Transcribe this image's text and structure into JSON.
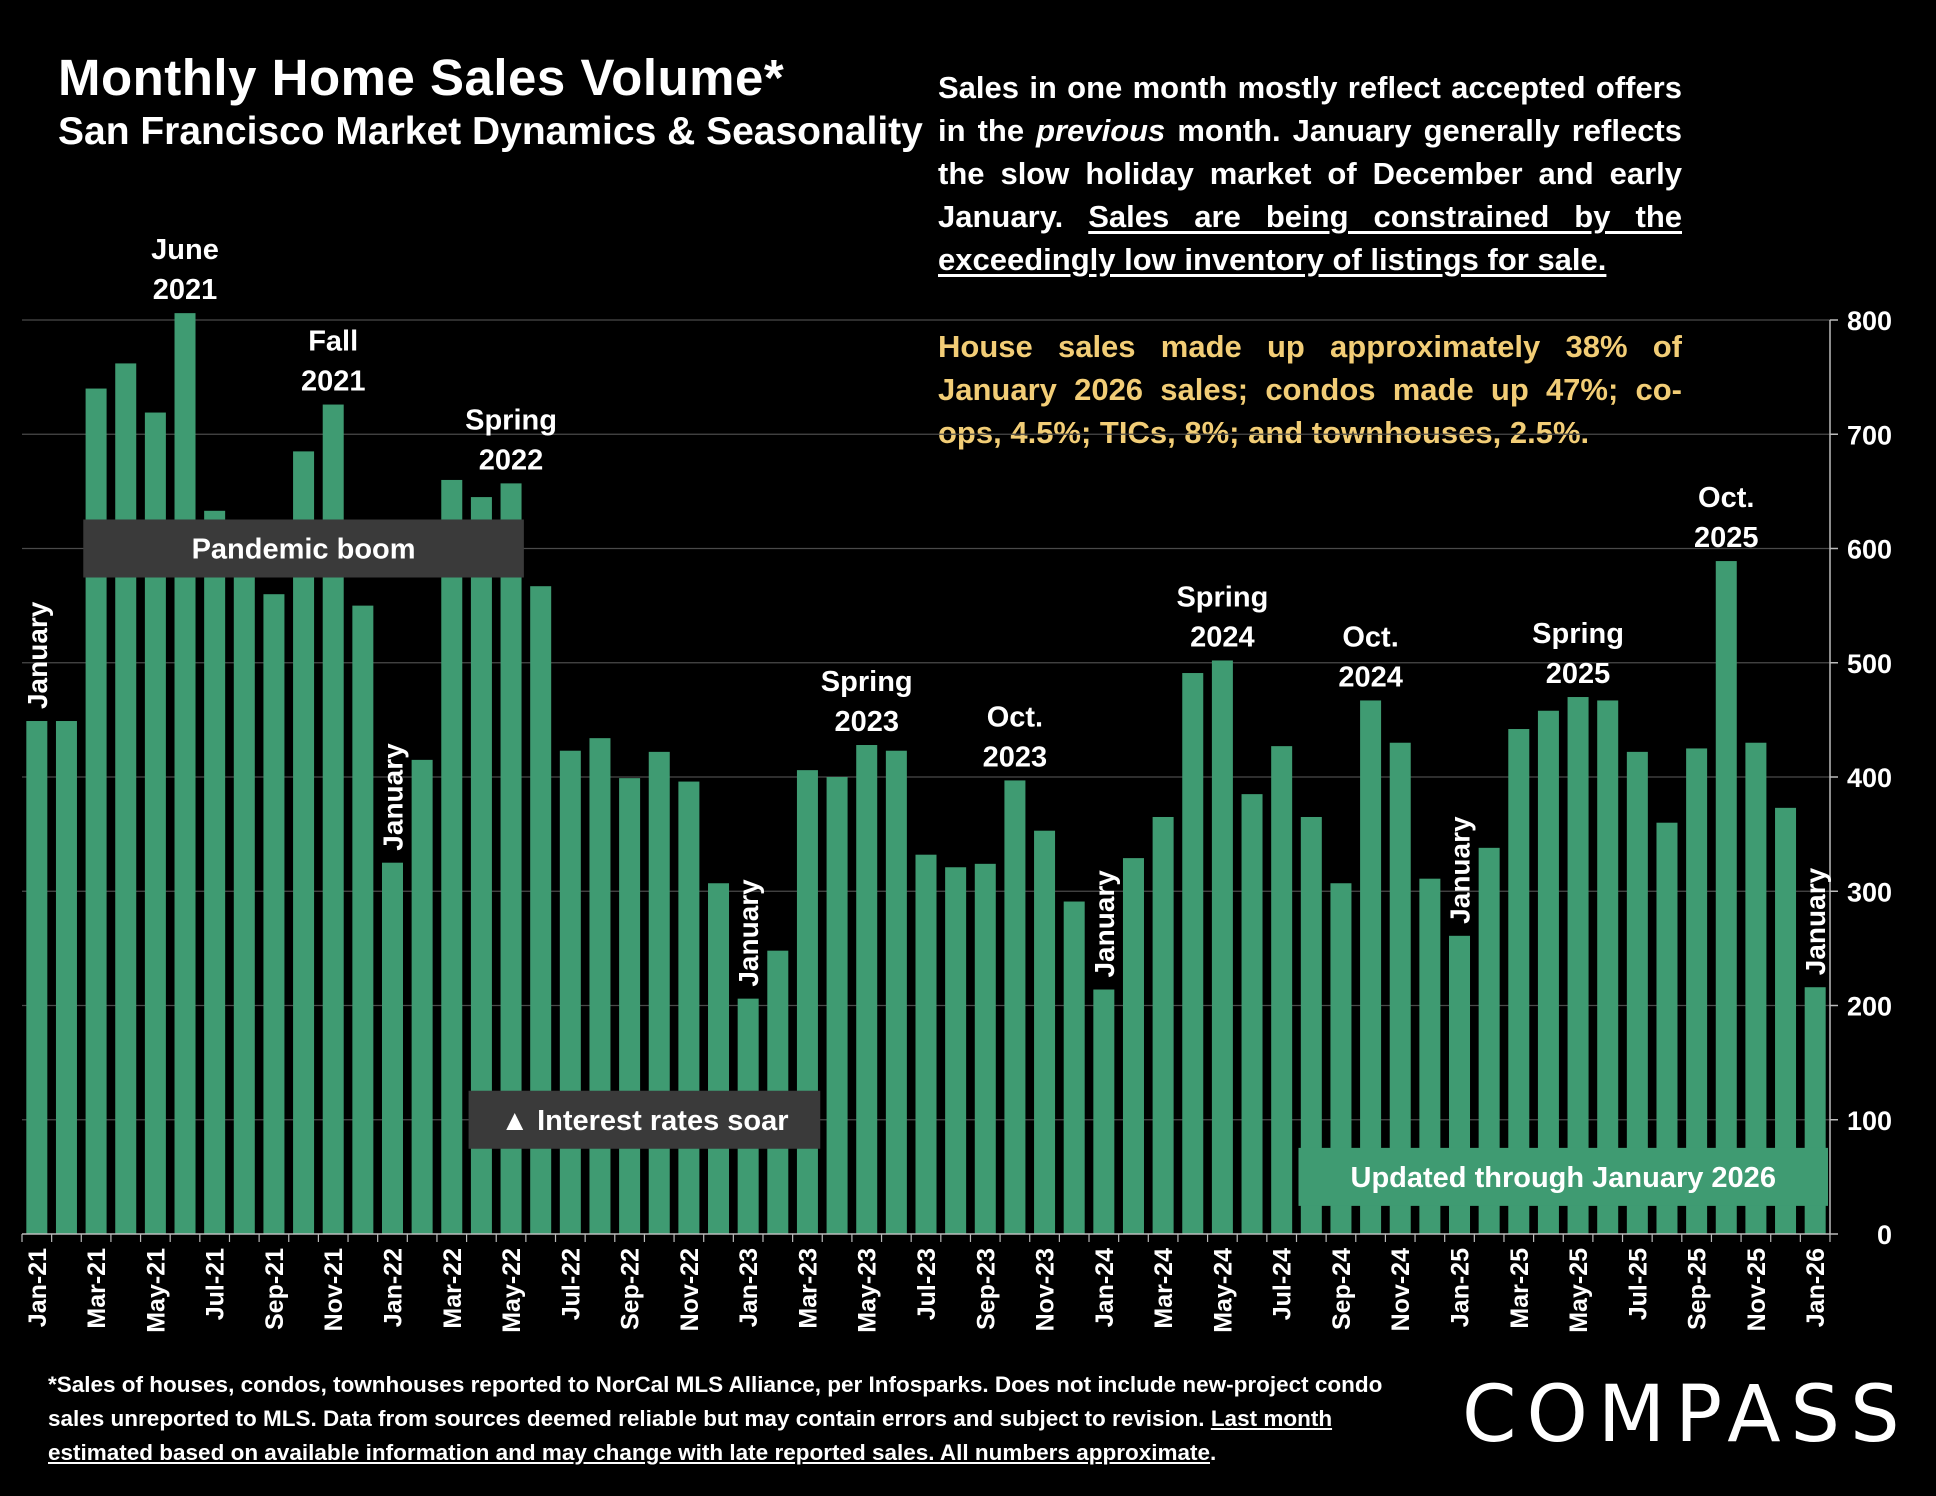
{
  "title": "Monthly Home Sales Volume*",
  "subtitle": "San Francisco Market Dynamics & Seasonality",
  "note1": {
    "part1": "Sales in one month mostly reflect accepted offers in the ",
    "italic": "previous",
    "part2": " month. January generally reflects the slow holiday market of December and early January. ",
    "underlined": "Sales are being constrained by the exceedingly low inventory of listings for sale."
  },
  "note2": "House sales made up approximately 38% of January 2026 sales; condos made up 47%; co-ops, 4.5%; TICs, 8%; and townhouses, 2.5%.",
  "footnote": {
    "part1": "*Sales of houses, condos, townhouses reported to NorCal MLS Alliance, per Infosparks. Does not include new-project condo sales unreported to MLS. Data from sources deemed reliable but may contain errors and subject to revision. ",
    "underlined": "Last month estimated based on available information and may change with late reported sales. All numbers approximate",
    "end": "."
  },
  "logo": "COMPASS",
  "colors": {
    "bar": "#3f9b72",
    "background": "#000000",
    "box": "#3a3a3a",
    "note_highlight": "#f2cd76",
    "updated_box": "#3f9b72"
  },
  "chart_data": {
    "type": "bar",
    "title": "Monthly Home Sales Volume*",
    "ylim": [
      0,
      800
    ],
    "y_ticks": [
      0,
      100,
      200,
      300,
      400,
      500,
      600,
      700,
      800
    ],
    "y_axis_side": "right",
    "grid": true,
    "categories": [
      "Jan-21",
      "Feb-21",
      "Mar-21",
      "Apr-21",
      "May-21",
      "Jun-21",
      "Jul-21",
      "Aug-21",
      "Sep-21",
      "Oct-21",
      "Nov-21",
      "Dec-21",
      "Jan-22",
      "Feb-22",
      "Mar-22",
      "Apr-22",
      "May-22",
      "Jun-22",
      "Jul-22",
      "Aug-22",
      "Sep-22",
      "Oct-22",
      "Nov-22",
      "Dec-22",
      "Jan-23",
      "Feb-23",
      "Mar-23",
      "Apr-23",
      "May-23",
      "Jun-23",
      "Jul-23",
      "Aug-23",
      "Sep-23",
      "Oct-23",
      "Nov-23",
      "Dec-23",
      "Jan-24",
      "Feb-24",
      "Mar-24",
      "Apr-24",
      "May-24",
      "Jun-24",
      "Jul-24",
      "Aug-24",
      "Sep-24",
      "Oct-24",
      "Nov-24",
      "Dec-24",
      "Jan-25",
      "Feb-25",
      "Mar-25",
      "Apr-25",
      "May-25",
      "Jun-25",
      "Jul-25",
      "Aug-25",
      "Sep-25",
      "Oct-25",
      "Nov-25",
      "Dec-25",
      "Jan-26"
    ],
    "x_tick_labels": [
      "Jan-21",
      "Mar-21",
      "May-21",
      "Jul-21",
      "Sep-21",
      "Nov-21",
      "Jan-22",
      "Mar-22",
      "May-22",
      "Jul-22",
      "Sep-22",
      "Nov-22",
      "Jan-23",
      "Mar-23",
      "May-23",
      "Jul-23",
      "Sep-23",
      "Nov-23",
      "Jan-24",
      "Mar-24",
      "May-24",
      "Jul-24",
      "Sep-24",
      "Nov-24",
      "Jan-25",
      "Mar-25",
      "May-25",
      "Jul-25",
      "Sep-25",
      "Nov-25",
      "Jan-26"
    ],
    "values": [
      449,
      449,
      740,
      762,
      719,
      806,
      633,
      614,
      560,
      685,
      726,
      550,
      325,
      415,
      660,
      645,
      657,
      567,
      423,
      434,
      399,
      422,
      396,
      307,
      206,
      248,
      406,
      400,
      428,
      423,
      332,
      321,
      324,
      397,
      353,
      291,
      214,
      329,
      365,
      491,
      502,
      385,
      427,
      365,
      307,
      467,
      430,
      311,
      261,
      338,
      442,
      458,
      470,
      467,
      422,
      360,
      425,
      589,
      430,
      373,
      216
    ],
    "annotations": [
      {
        "category": "Jan-21",
        "text": "January",
        "style": "vertical"
      },
      {
        "category": "Jun-21",
        "text": "June\n2021",
        "style": "above"
      },
      {
        "category": "Nov-21",
        "text": "Fall\n2021",
        "style": "above"
      },
      {
        "category": "Jan-22",
        "text": "January",
        "style": "vertical"
      },
      {
        "category": "May-22",
        "text": "Spring\n2022",
        "style": "above"
      },
      {
        "category": "Jan-23",
        "text": "January",
        "style": "vertical"
      },
      {
        "category": "May-23",
        "text": "Spring\n2023",
        "style": "above"
      },
      {
        "category": "Oct-23",
        "text": "Oct.\n2023",
        "style": "above"
      },
      {
        "category": "Jan-24",
        "text": "January",
        "style": "vertical"
      },
      {
        "category": "May-24",
        "text": "Spring\n2024",
        "style": "above"
      },
      {
        "category": "Oct-24",
        "text": "Oct.\n2024",
        "style": "above"
      },
      {
        "category": "Jan-25",
        "text": "January",
        "style": "vertical"
      },
      {
        "category": "May-25",
        "text": "Spring\n2025",
        "style": "above"
      },
      {
        "category": "Oct-25",
        "text": "Oct.\n2025",
        "style": "above"
      },
      {
        "category": "Jan-26",
        "text": "January",
        "style": "vertical"
      }
    ],
    "boxes": [
      {
        "text": "Pandemic boom",
        "from": "Mar-21",
        "to": "May-22",
        "value": 600
      },
      {
        "text": "▲ Interest rates soar",
        "from": "Apr-22",
        "to": "Mar-23",
        "value": 100
      },
      {
        "text": "Updated through January 2026",
        "from": "Aug-24",
        "to": "Jan-26",
        "value": 50
      }
    ]
  }
}
